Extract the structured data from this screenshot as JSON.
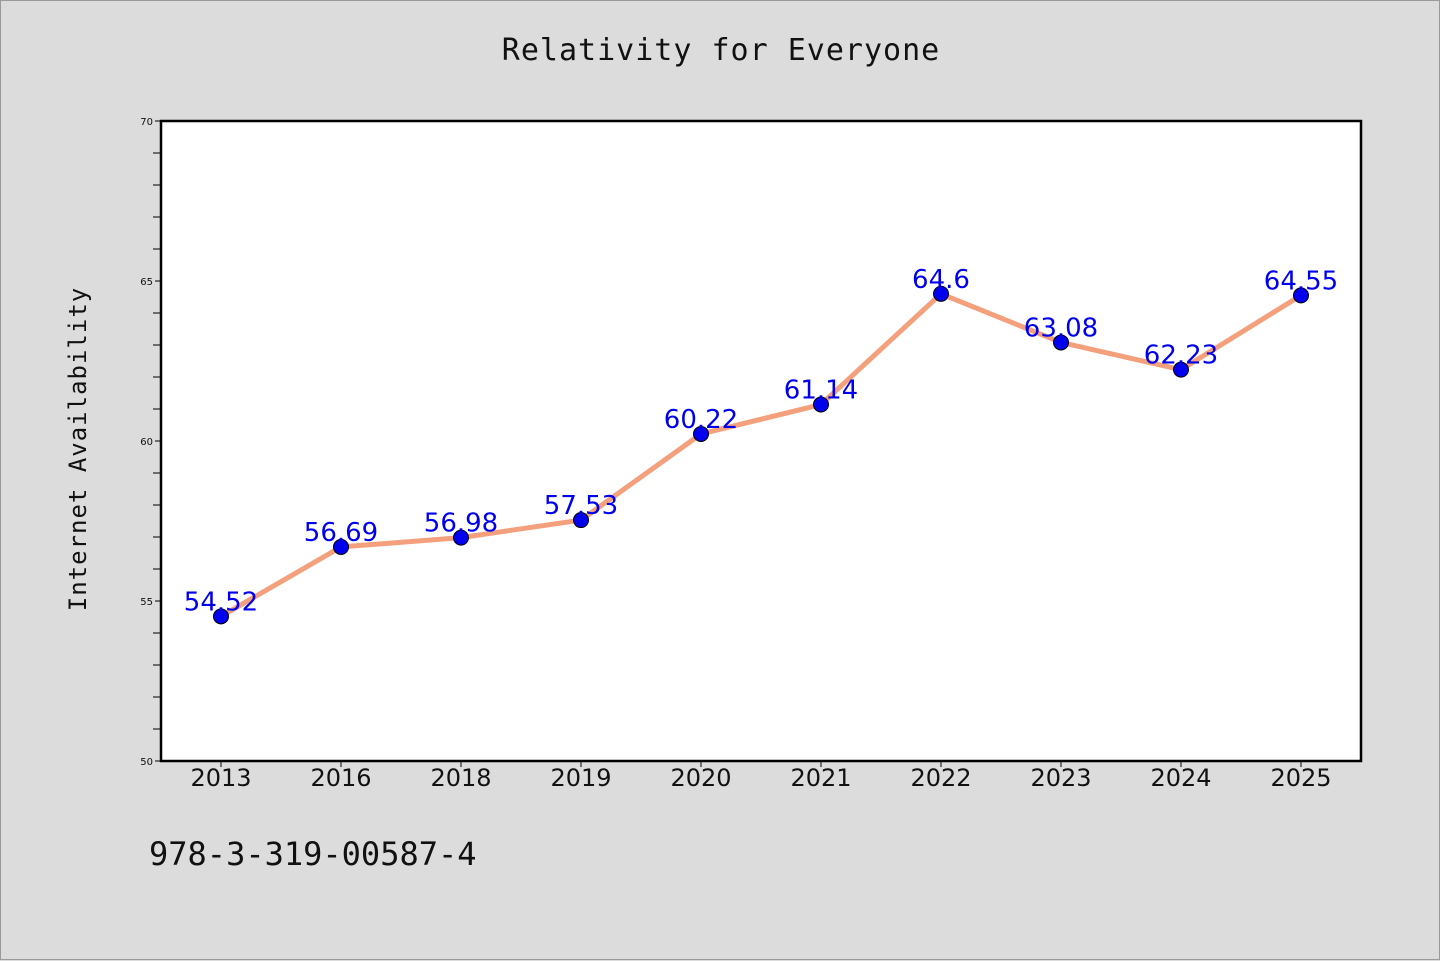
{
  "footer": {
    "code": "978-3-319-00587-4"
  },
  "colors": {
    "line": "#f4a07c",
    "marker": "#0000ee",
    "label": "#0000ee",
    "plot_bg": "#ffffff",
    "page_bg": "#dcdcdc"
  },
  "chart_data": {
    "type": "line",
    "title": "Relativity for Everyone",
    "xlabel": "",
    "ylabel": "Internet Availability",
    "categories": [
      "2013",
      "2016",
      "2018",
      "2019",
      "2020",
      "2021",
      "2022",
      "2023",
      "2024",
      "2025"
    ],
    "values": [
      54.52,
      56.69,
      56.98,
      57.53,
      60.22,
      61.14,
      64.6,
      63.08,
      62.23,
      64.55
    ],
    "data_labels": [
      "54.52",
      "56.69",
      "56.98",
      "57.53",
      "60.22",
      "61.14",
      "64.6",
      "63.08",
      "62.23",
      "64.55"
    ],
    "ylim": [
      50,
      70
    ],
    "yticks": [
      50,
      55,
      60,
      65,
      70
    ],
    "grid": false,
    "legend": "none"
  }
}
